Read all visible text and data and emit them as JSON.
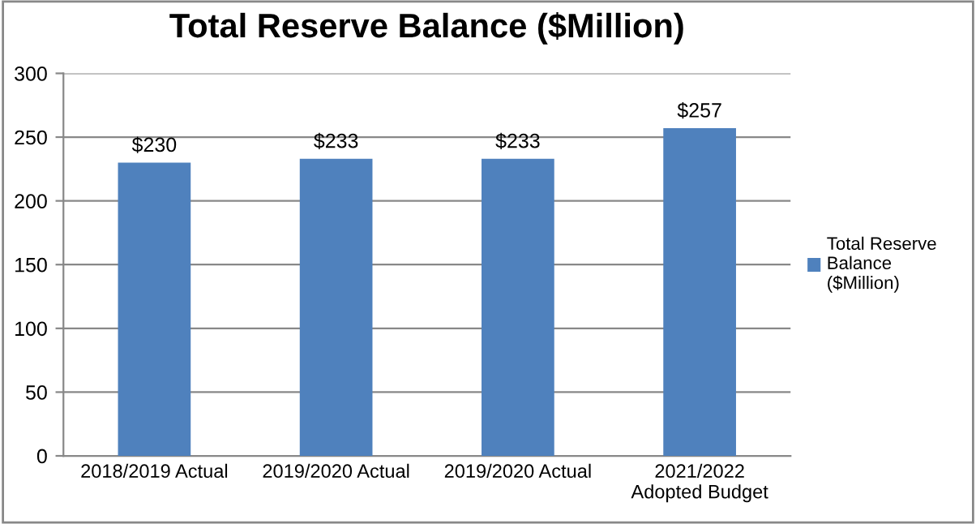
{
  "chart_data": {
    "type": "bar",
    "title": "Total Reserve Balance ($Million)",
    "categories": [
      "2018/2019 Actual",
      "2019/2020 Actual",
      "2019/2020 Actual",
      "2021/2022\nAdopted Budget"
    ],
    "series": [
      {
        "name": "Total Reserve\nBalance\n($Million)",
        "color": "#4f81bd",
        "values": [
          230,
          233,
          233,
          257
        ],
        "value_labels": [
          "$230",
          "$233",
          "$233",
          "$257"
        ]
      }
    ],
    "ylim": [
      0,
      300
    ],
    "yticks": [
      0,
      50,
      100,
      150,
      200,
      250,
      300
    ],
    "grid": "y",
    "legend": "right"
  }
}
